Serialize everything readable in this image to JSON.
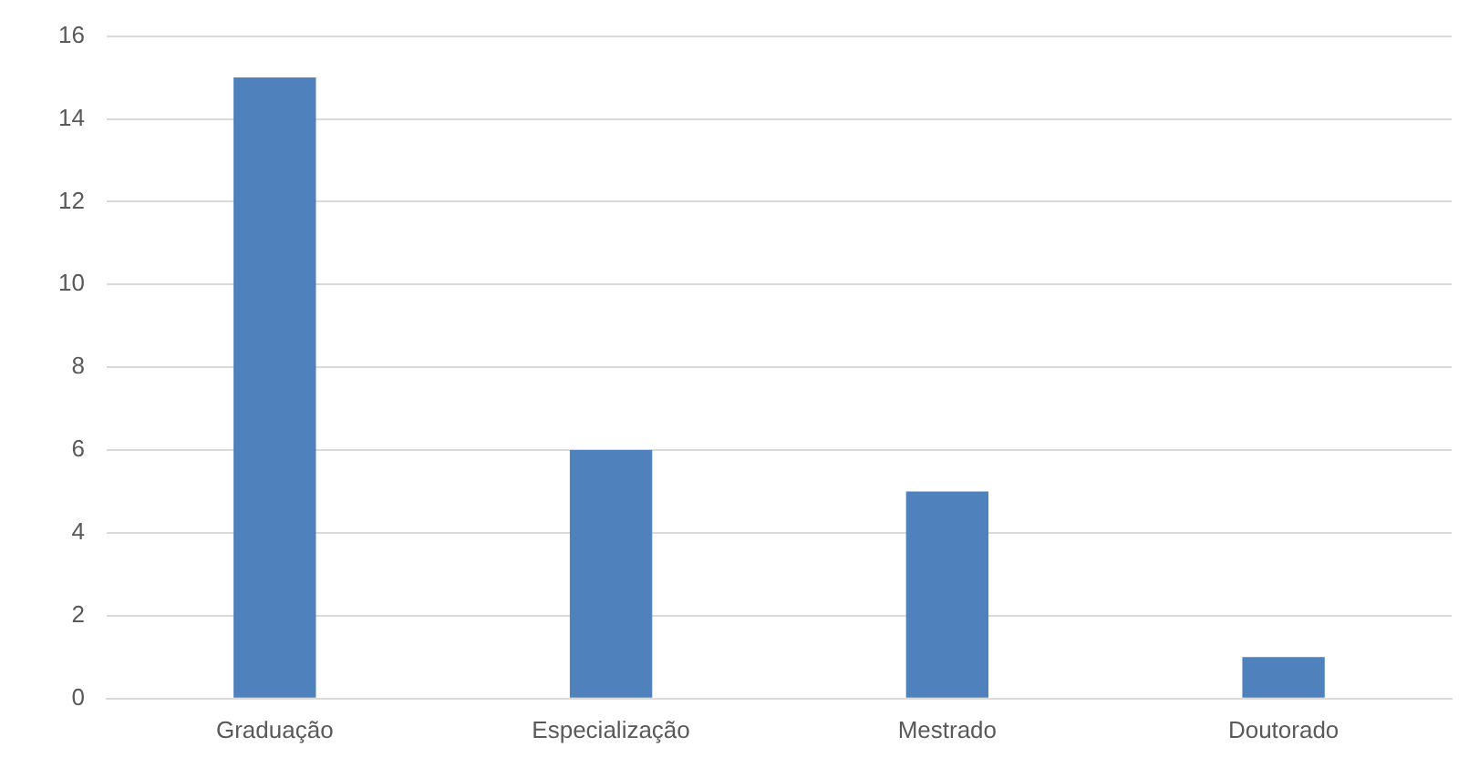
{
  "chart_data": {
    "type": "bar",
    "categories": [
      "Graduação",
      "Especialização",
      "Mestrado",
      "Doutorado"
    ],
    "values": [
      15,
      6,
      5,
      1
    ],
    "color": "#4f81bd",
    "ylim": [
      0,
      16
    ],
    "yticks": [
      0,
      2,
      4,
      6,
      8,
      10,
      12,
      14,
      16
    ],
    "grid": "y",
    "legend": false
  }
}
